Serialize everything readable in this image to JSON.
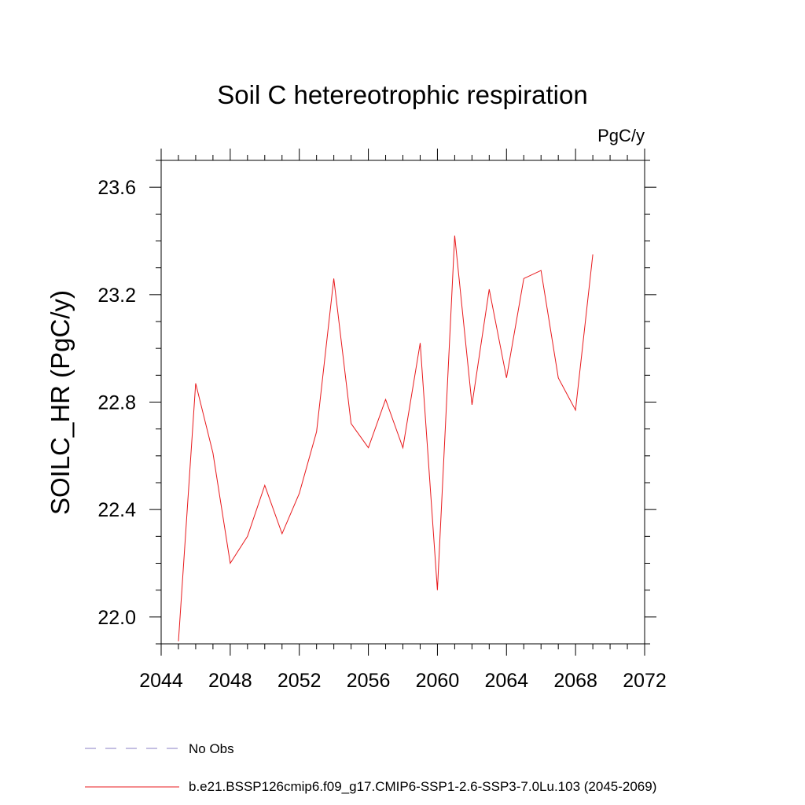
{
  "chart_data": {
    "type": "line",
    "title": "Soil C hetereotrophic respiration",
    "units": "PgC/y",
    "xlabel": "",
    "ylabel": "SOILC_HR  (PgC/y)",
    "xlim": [
      2044,
      2072
    ],
    "ylim": [
      21.9,
      23.7
    ],
    "xticks": [
      "2044",
      "2048",
      "2052",
      "2056",
      "2060",
      "2064",
      "2068",
      "2072"
    ],
    "yticks": [
      "22.0",
      "22.4",
      "22.8",
      "23.2",
      "23.6"
    ],
    "grid": false,
    "legend_position": "bottom",
    "series": [
      {
        "name": "b.e21.BSSP126cmip6.f09_g17.CMIP6-SSP1-2.6-SSP3-7.0Lu.103 (2045-2069)",
        "color": "#e8191c",
        "style": "solid",
        "x": [
          2045,
          2046,
          2047,
          2048,
          2049,
          2050,
          2051,
          2052,
          2053,
          2054,
          2055,
          2056,
          2057,
          2058,
          2059,
          2060,
          2061,
          2062,
          2063,
          2064,
          2065,
          2066,
          2067,
          2068,
          2069
        ],
        "y": [
          21.91,
          22.87,
          22.61,
          22.2,
          22.3,
          22.49,
          22.31,
          22.46,
          22.69,
          23.26,
          22.72,
          22.63,
          22.81,
          22.63,
          23.02,
          22.1,
          23.42,
          22.79,
          23.22,
          22.89,
          23.26,
          23.29,
          22.89,
          22.77,
          23.35
        ]
      }
    ],
    "legend": [
      {
        "label": "No Obs",
        "color": "#8a7fc4",
        "style": "dashed"
      },
      {
        "label": "b.e21.BSSP126cmip6.f09_g17.CMIP6-SSP1-2.6-SSP3-7.0Lu.103 (2045-2069)",
        "color": "#e8191c",
        "style": "solid"
      }
    ]
  }
}
